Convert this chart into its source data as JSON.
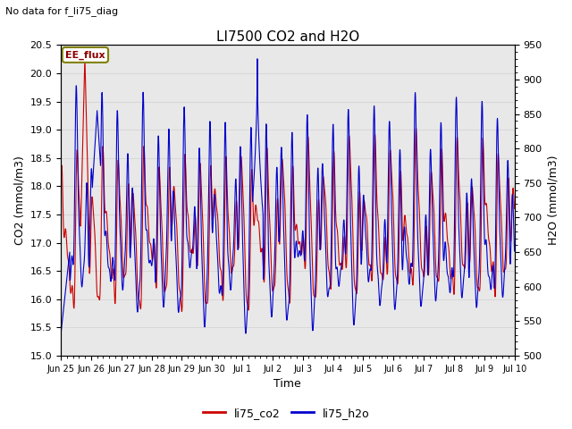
{
  "title": "LI7500 CO2 and H2O",
  "subtitle": "No data for f_li75_diag",
  "xlabel": "Time",
  "ylabel_left": "CO2 (mmol/m3)",
  "ylabel_right": "H2O (mmol/m3)",
  "ylim_left": [
    15.0,
    20.5
  ],
  "ylim_right": [
    500,
    950
  ],
  "yticks_left": [
    15.0,
    15.5,
    16.0,
    16.5,
    17.0,
    17.5,
    18.0,
    18.5,
    19.0,
    19.5,
    20.0,
    20.5
  ],
  "yticks_right": [
    500,
    550,
    600,
    650,
    700,
    750,
    800,
    850,
    900,
    950
  ],
  "xtick_labels": [
    "Jun 25",
    "Jun 26",
    "Jun 27",
    "Jun 28",
    "Jun 29",
    "Jun 30",
    "Jul 1",
    "Jul 2",
    "Jul 3",
    "Jul 4",
    "Jul 5",
    "Jul 6",
    "Jul 7",
    "Jul 8",
    "Jul 9",
    "Jul 10"
  ],
  "color_co2": "#cc0000",
  "color_h2o": "#0000cc",
  "legend_label_co2": "li75_co2",
  "legend_label_h2o": "li75_h2o",
  "annotation_text": "EE_flux",
  "grid_color": "#d8d8d8",
  "bg_color": "#e8e8e8",
  "n_points": 2000
}
